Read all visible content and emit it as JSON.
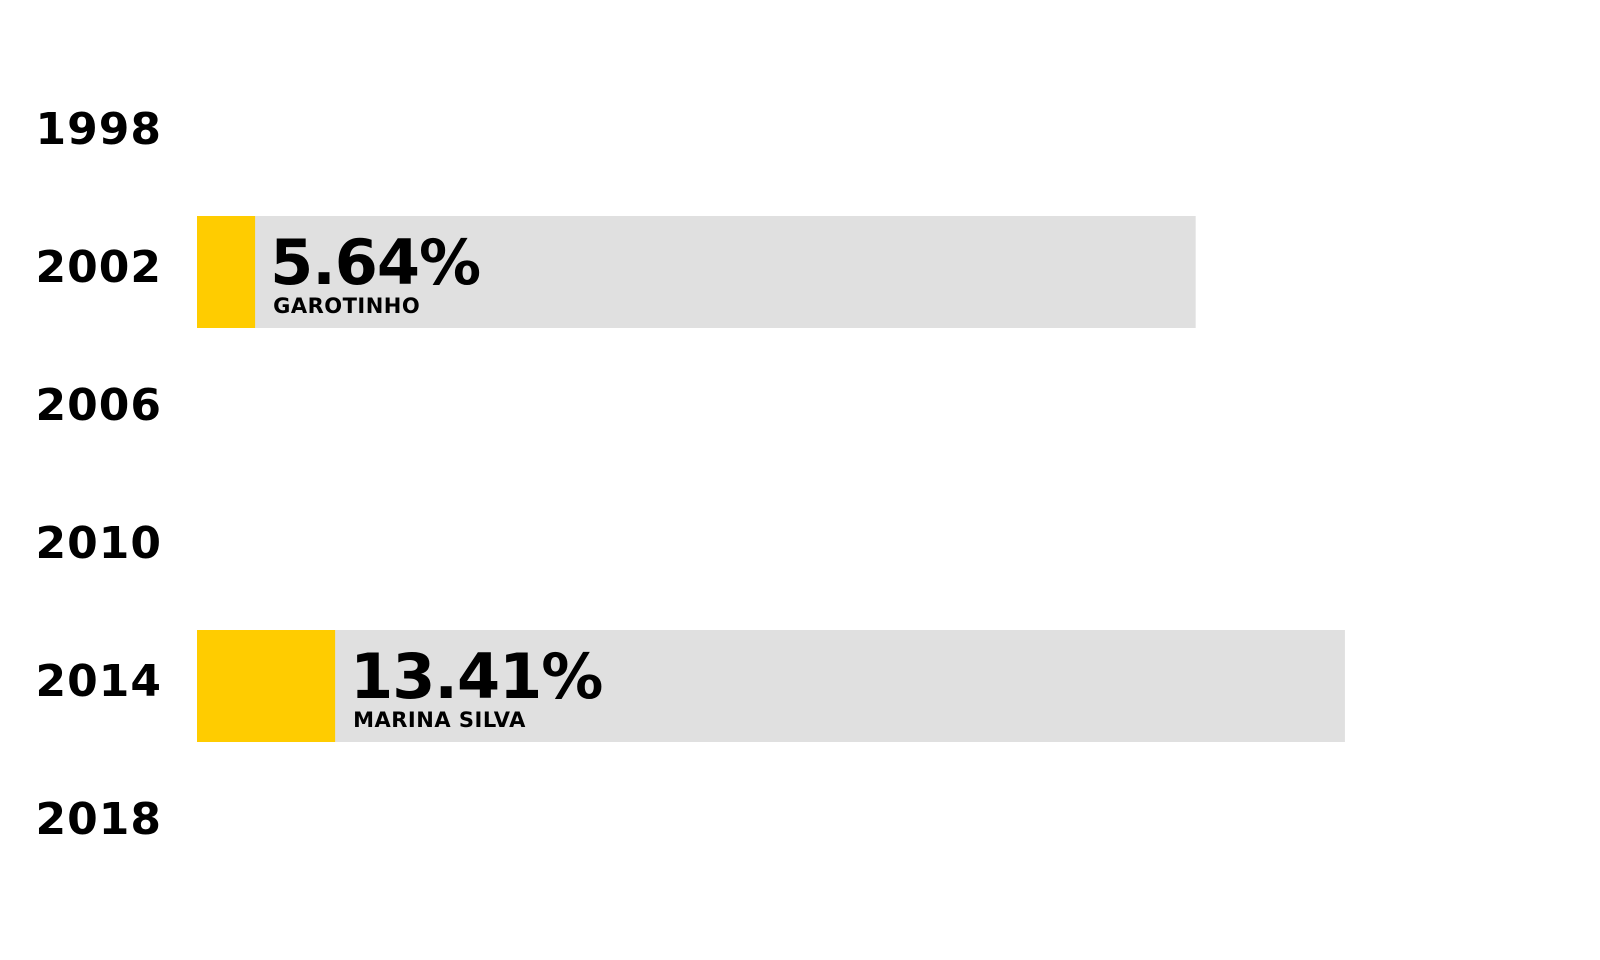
{
  "chart_data": {
    "type": "bar",
    "orientation": "horizontal",
    "categories": [
      "1998",
      "2002",
      "2006",
      "2010",
      "2014",
      "2018"
    ],
    "series": [
      {
        "values": [
          null,
          5.64,
          null,
          null,
          13.41,
          null
        ]
      }
    ],
    "value_labels": [
      "",
      "5.64%",
      "",
      "",
      "13.41%",
      ""
    ],
    "candidate_names": [
      "",
      "GAROTINHO",
      "",
      "",
      "MARINA SILVA",
      ""
    ],
    "title": "",
    "xlabel": "",
    "ylabel": "",
    "grid": false,
    "legend": "none",
    "colors": {
      "highlight": "#FFCC00",
      "track": "#E0E0E0",
      "text": "#000000",
      "background": "#FFFFFF"
    }
  }
}
